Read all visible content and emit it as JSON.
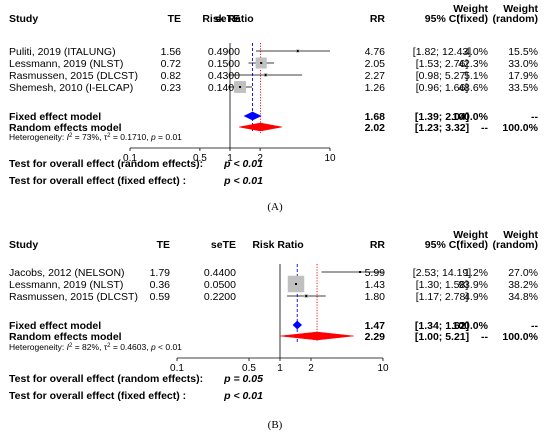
{
  "chart_data": [
    {
      "type": "forest",
      "panel_label": "(A)",
      "header": {
        "study": "Study",
        "te": "TE",
        "sete": "seTE",
        "plot": "Risk Ratio",
        "rr": "RR",
        "ci": "95% CI",
        "wf_line1": "Weight",
        "wf_line2": "(fixed)",
        "wr_line1": "Weight",
        "wr_line2": "(random)"
      },
      "studies": [
        {
          "study": "Puliti, 2019 (ITALUNG)",
          "te": "1.56",
          "sete": "0.4900",
          "rr": 4.76,
          "lo": 1.82,
          "hi": 12.43,
          "rr_text": "4.76",
          "ci_text": "[1.82; 12.43]",
          "w_fixed": "4.0%",
          "w_random": "15.5%",
          "wf": 4.0
        },
        {
          "study": "Lessmann, 2019 (NLST)",
          "te": "0.72",
          "sete": "0.1500",
          "rr": 2.05,
          "lo": 1.53,
          "hi": 2.76,
          "rr_text": "2.05",
          "ci_text": "[1.53; 2.76]",
          "w_fixed": "42.3%",
          "w_random": "33.0%",
          "wf": 42.3
        },
        {
          "study": "Rasmussen, 2015 (DLCST)",
          "te": "0.82",
          "sete": "0.4300",
          "rr": 2.27,
          "lo": 0.98,
          "hi": 5.27,
          "rr_text": "2.27",
          "ci_text": "[0.98; 5.27]",
          "w_fixed": "5.1%",
          "w_random": "17.9%",
          "wf": 5.1
        },
        {
          "study": "Shemesh, 2010 (I-ELCAP)",
          "te": "0.23",
          "sete": "0.1400",
          "rr": 1.26,
          "lo": 0.96,
          "hi": 1.66,
          "rr_text": "1.26",
          "ci_text": "[0.96; 1.66]",
          "w_fixed": "48.6%",
          "w_random": "33.5%",
          "wf": 48.6
        }
      ],
      "fixed": {
        "label": "Fixed effect model",
        "rr": 1.68,
        "lo": 1.39,
        "hi": 2.04,
        "rr_text": "1.68",
        "ci_text": "[1.39; 2.04]",
        "w_fixed": "100.0%",
        "w_random": "--"
      },
      "random": {
        "label": "Random effects model",
        "rr": 2.02,
        "lo": 1.23,
        "hi": 3.32,
        "rr_text": "2.02",
        "ci_text": "[1.23; 3.32]",
        "w_fixed": "--",
        "w_random": "100.0%"
      },
      "heterogeneity": {
        "prefix": "Heterogeneity: ",
        "i2_label": "I",
        "i2_rest": " = 73%, ",
        "tau_label": "τ",
        "tau_rest": " = 0.1710, ",
        "p_label": "p",
        "p_rest": " = 0.01"
      },
      "axis": {
        "scale": "log",
        "ticks": [
          0.1,
          0.5,
          1,
          2,
          10
        ],
        "tick_labels": [
          "0.1",
          "0.5",
          "1",
          "2",
          "10"
        ]
      },
      "tests": [
        {
          "label": "Test for overall effect (random effects):",
          "value": "p < 0.01"
        },
        {
          "label": "Test for overall effect (fixed effect) :",
          "value": "p < 0.01"
        }
      ],
      "colors": {
        "fixed": "#0000ff",
        "random": "#ff0000",
        "box": "#c0c0c0"
      }
    },
    {
      "type": "forest",
      "panel_label": "(B)",
      "header": {
        "study": "Study",
        "te": "TE",
        "sete": "seTE",
        "plot": "Risk Ratio",
        "rr": "RR",
        "ci": "95% CI",
        "wf_line1": "Weight",
        "wf_line2": "(fixed)",
        "wr_line1": "Weight",
        "wr_line2": "(random)"
      },
      "studies": [
        {
          "study": "Jacobs, 2012 (NELSON)",
          "te": "1.79",
          "sete": "0.4400",
          "rr": 5.99,
          "lo": 2.53,
          "hi": 14.19,
          "rr_text": "5.99",
          "ci_text": "[2.53; 14.19]",
          "w_fixed": "1.2%",
          "w_random": "27.0%",
          "wf": 1.2
        },
        {
          "study": "Lessmann, 2019 (NLST)",
          "te": "0.36",
          "sete": "0.0500",
          "rr": 1.43,
          "lo": 1.3,
          "hi": 1.58,
          "rr_text": "1.43",
          "ci_text": "[1.30; 1.58]",
          "w_fixed": "93.9%",
          "w_random": "38.2%",
          "wf": 93.9
        },
        {
          "study": "Rasmussen, 2015 (DLCST)",
          "te": "0.59",
          "sete": "0.2200",
          "rr": 1.8,
          "lo": 1.17,
          "hi": 2.78,
          "rr_text": "1.80",
          "ci_text": "[1.17; 2.78]",
          "w_fixed": "4.9%",
          "w_random": "34.8%",
          "wf": 4.9
        }
      ],
      "fixed": {
        "label": "Fixed effect model",
        "rr": 1.47,
        "lo": 1.34,
        "hi": 1.62,
        "rr_text": "1.47",
        "ci_text": "[1.34; 1.62]",
        "w_fixed": "100.0%",
        "w_random": "--"
      },
      "random": {
        "label": "Random effects model",
        "rr": 2.29,
        "lo": 1.0,
        "hi": 5.21,
        "rr_text": "2.29",
        "ci_text": "[1.00; 5.21]",
        "w_fixed": "--",
        "w_random": "100.0%"
      },
      "heterogeneity": {
        "prefix": "Heterogeneity: ",
        "i2_label": "I",
        "i2_rest": " = 82%, ",
        "tau_label": "τ",
        "tau_rest": " = 0.4603, ",
        "p_label": "p",
        "p_rest": " < 0.01"
      },
      "axis": {
        "scale": "log",
        "ticks": [
          0.1,
          0.5,
          1,
          2,
          10
        ],
        "tick_labels": [
          "0.1",
          "0.5",
          "1",
          "2",
          "10"
        ]
      },
      "tests": [
        {
          "label": "Test for overall effect (random effects):",
          "value": "p = 0.05"
        },
        {
          "label": "Test for overall effect (fixed effect) :",
          "value": "p < 0.01"
        }
      ],
      "colors": {
        "fixed": "#0000ff",
        "random": "#ff0000",
        "box": "#c0c0c0"
      }
    }
  ]
}
